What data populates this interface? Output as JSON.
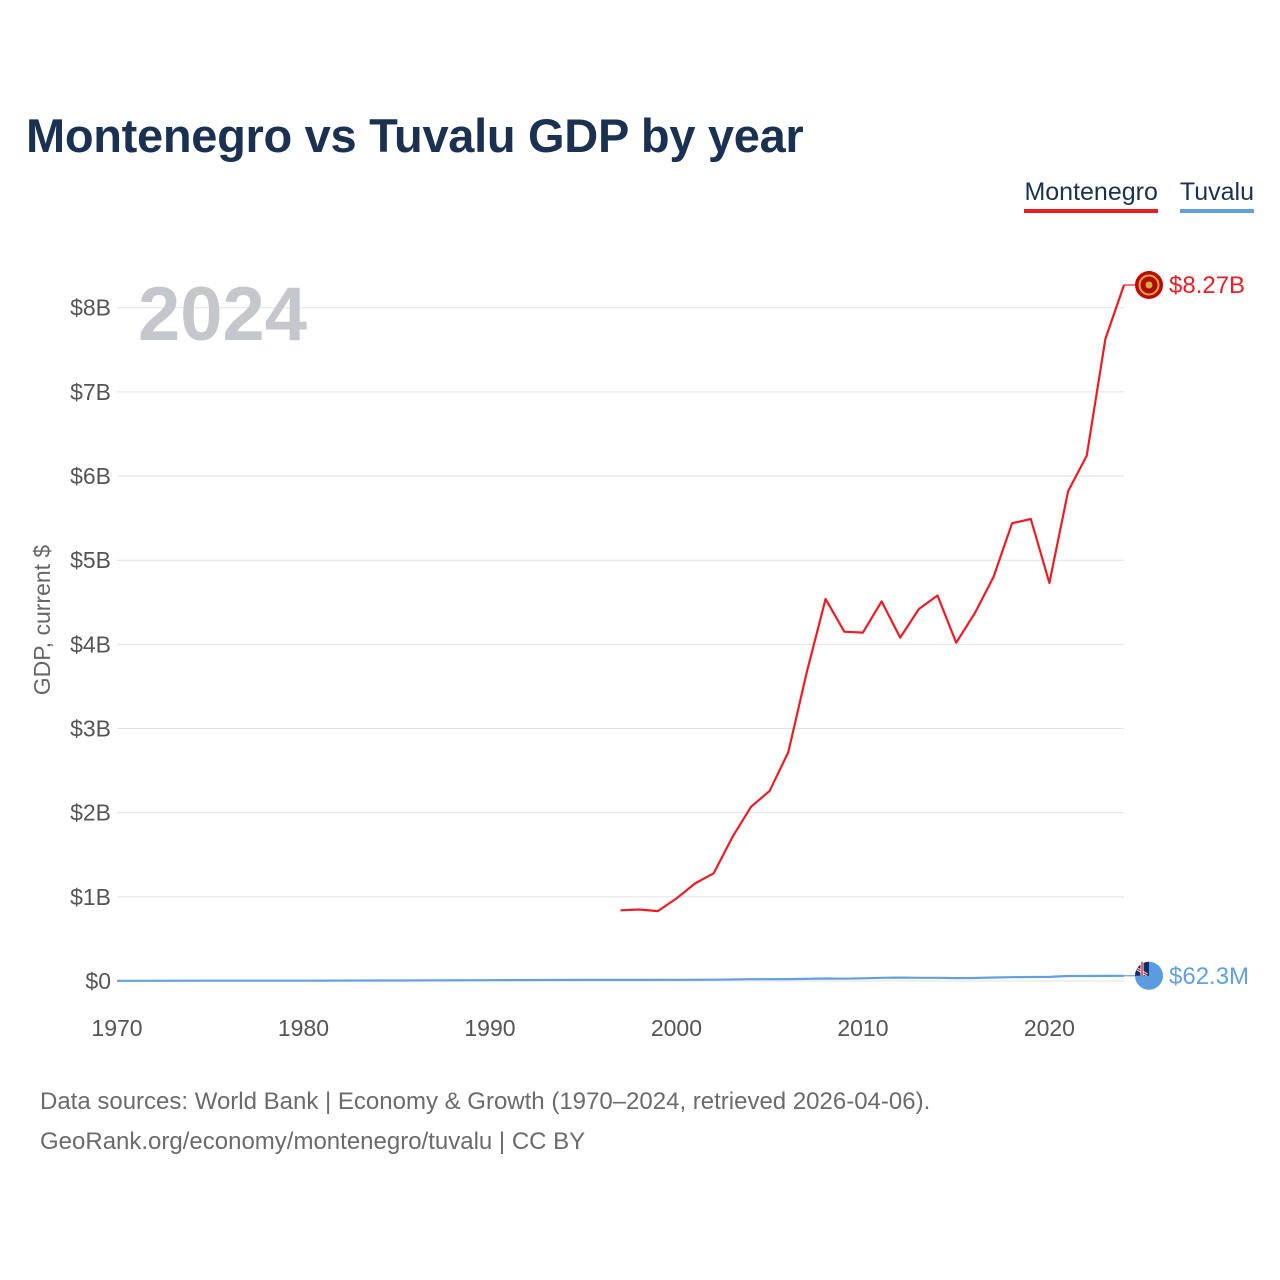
{
  "title": "Montenegro vs Tuvalu GDP by year",
  "legend": {
    "montenegro": "Montenegro",
    "tuvalu": "Tuvalu"
  },
  "year_watermark": "2024",
  "footer": {
    "line1": "Data sources: World Bank | Economy & Growth (1970–2024, retrieved 2026-04-06).",
    "line2": "GeoRank.org/economy/montenegro/tuvalu | CC BY"
  },
  "colors": {
    "montenegro": "#ec1c24",
    "tuvalu": "#62a0e2",
    "grid": "#e2e2e2",
    "title": "#1b3152"
  },
  "chart_data": {
    "type": "line",
    "title": "Montenegro vs Tuvalu GDP by year",
    "xlabel": "",
    "ylabel": "GDP, current $",
    "xlim": [
      1970,
      2024
    ],
    "ylim": [
      0,
      8.27
    ],
    "y_unit": "billions of current US$",
    "x_ticks": [
      1970,
      1980,
      1990,
      2000,
      2010,
      2020
    ],
    "x_tick_labels": [
      "1970",
      "1980",
      "1990",
      "2000",
      "2010",
      "2020"
    ],
    "y_ticks": [
      0,
      1,
      2,
      3,
      4,
      5,
      6,
      7,
      8
    ],
    "y_tick_labels": [
      "$0",
      "$1B",
      "$2B",
      "$3B",
      "$4B",
      "$5B",
      "$6B",
      "$7B",
      "$8B"
    ],
    "grid": true,
    "legend_position": "top-right",
    "series": [
      {
        "name": "Montenegro",
        "color": "#ec1c24",
        "end_label": "$8.27B",
        "x": [
          1997,
          1998,
          1999,
          2000,
          2001,
          2002,
          2003,
          2004,
          2005,
          2006,
          2007,
          2008,
          2009,
          2010,
          2011,
          2012,
          2013,
          2014,
          2015,
          2016,
          2017,
          2018,
          2019,
          2020,
          2021,
          2022,
          2023,
          2024
        ],
        "values": [
          0.84,
          0.85,
          0.83,
          0.98,
          1.16,
          1.28,
          1.71,
          2.07,
          2.26,
          2.72,
          3.68,
          4.54,
          4.15,
          4.14,
          4.51,
          4.08,
          4.42,
          4.58,
          4.02,
          4.37,
          4.8,
          5.44,
          5.49,
          4.73,
          5.82,
          6.24,
          7.63,
          8.27
        ]
      },
      {
        "name": "Tuvalu",
        "color": "#62a0e2",
        "end_label": "$62.3M",
        "x": [
          1970,
          1975,
          1980,
          1985,
          1990,
          1995,
          2000,
          2002,
          2004,
          2006,
          2008,
          2009,
          2010,
          2011,
          2012,
          2013,
          2014,
          2015,
          2016,
          2017,
          2018,
          2019,
          2020,
          2021,
          2022,
          2023,
          2024
        ],
        "values": [
          0.002,
          0.003,
          0.004,
          0.006,
          0.01,
          0.013,
          0.014,
          0.016,
          0.021,
          0.022,
          0.03,
          0.027,
          0.032,
          0.038,
          0.04,
          0.038,
          0.038,
          0.035,
          0.036,
          0.041,
          0.045,
          0.048,
          0.049,
          0.06,
          0.059,
          0.061,
          0.0623
        ]
      }
    ]
  }
}
